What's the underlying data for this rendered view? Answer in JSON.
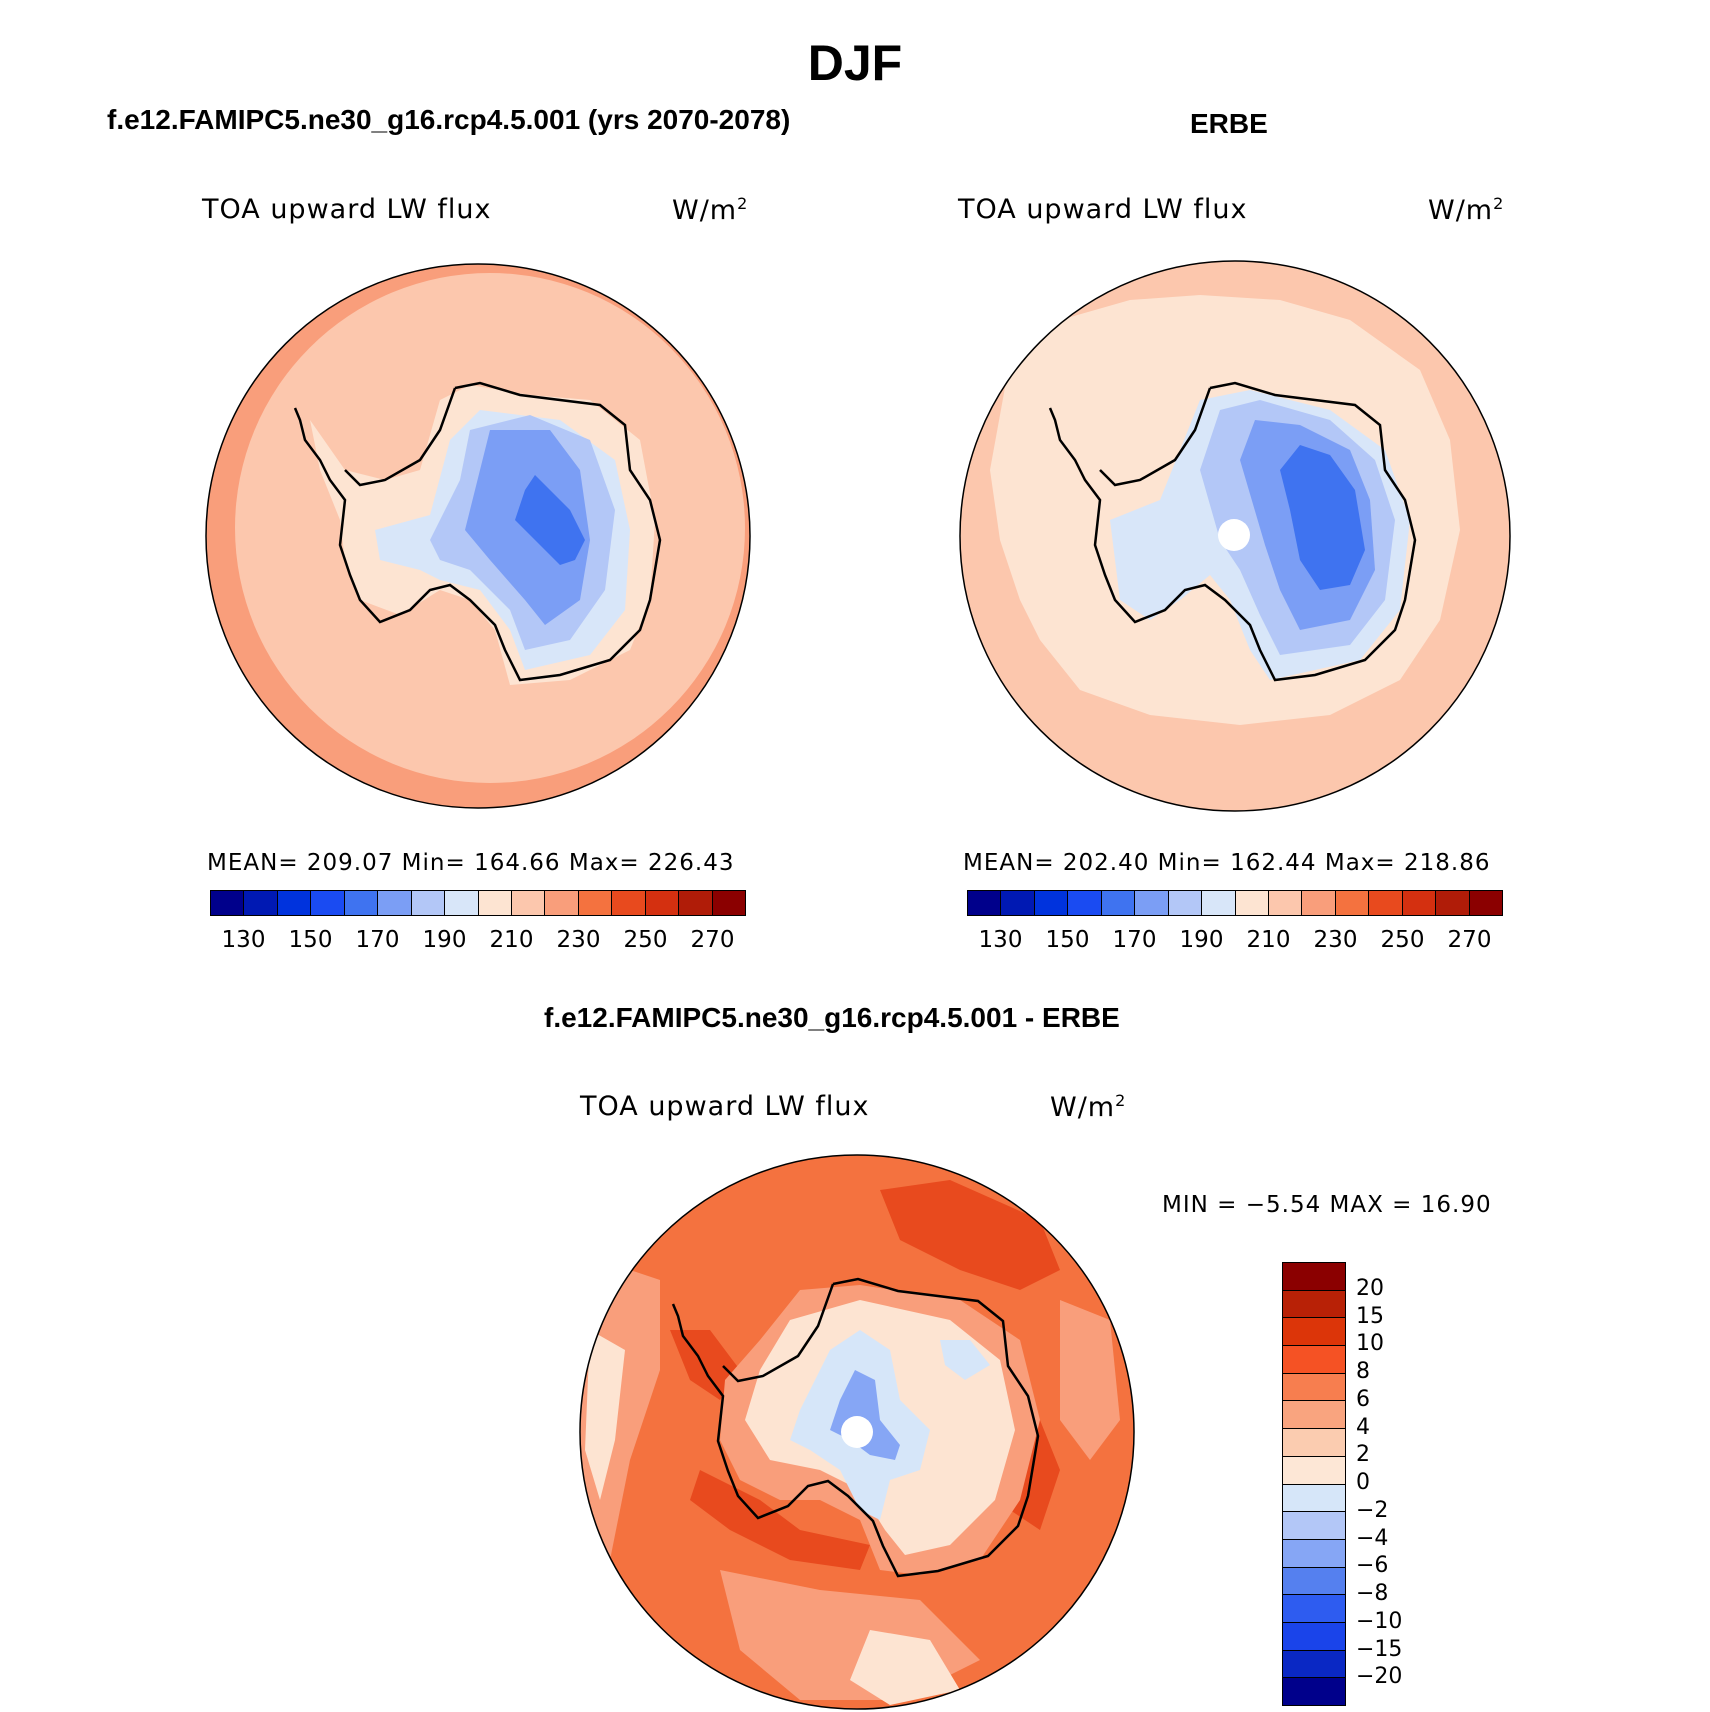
{
  "main_title": "DJF",
  "panels": [
    {
      "title": "f.e12.FAMIPC5.ne30_g16.rcp4.5.001 (yrs 2070-2078)",
      "variable": "TOA upward LW flux",
      "units": "W/m",
      "units_sup": "2",
      "stats": "MEAN= 209.07   Min= 164.66   Max= 226.43"
    },
    {
      "title": "ERBE",
      "variable": "TOA upward LW flux",
      "units": "W/m",
      "units_sup": "2",
      "stats": "MEAN= 202.40   Min= 162.44   Max= 218.86"
    },
    {
      "title": "f.e12.FAMIPC5.ne30_g16.rcp4.5.001 - ERBE",
      "variable": "TOA upward LW flux",
      "units": "W/m",
      "units_sup": "2",
      "stats": "MIN =   −5.54 MAX =   16.90"
    }
  ],
  "colorbar_abs": {
    "colors": [
      "#00008b",
      "#0019b3",
      "#0033dd",
      "#1a4bf2",
      "#3f73f0",
      "#7b9ef5",
      "#b3c7f7",
      "#d8e6f9",
      "#fde4d2",
      "#fcc7ad",
      "#f99e7b",
      "#f4723f",
      "#e84a1e",
      "#d43010",
      "#b01c08",
      "#8b0000"
    ],
    "labels": [
      "130",
      "150",
      "170",
      "190",
      "210",
      "230",
      "250",
      "270"
    ]
  },
  "colorbar_diff": {
    "colors": [
      "#8b0000",
      "#b82106",
      "#dc3509",
      "#f55224",
      "#f77e4f",
      "#f9a47f",
      "#fbccb0",
      "#fde7d6",
      "#d6e6f9",
      "#b3c7f7",
      "#86a6f5",
      "#5580ef",
      "#2e5cf0",
      "#1a44ea",
      "#0a28c4",
      "#00008b"
    ],
    "labels": [
      "20",
      "15",
      "10",
      "8",
      "6",
      "4",
      "2",
      "0",
      "−2",
      "−4",
      "−6",
      "−8",
      "−10",
      "−15",
      "−20"
    ]
  },
  "map_colors": {
    "ocean_model": "#fcc7ad",
    "ocean_model_edge": "#f99e7b",
    "ocean_erbe": "#fde4d2",
    "ocean_erbe_band": "#fcc7ad",
    "ice_1": "#d8e6f9",
    "ice_2": "#b3c7f7",
    "ice_3": "#7b9ef5",
    "ice_4": "#3f73f0",
    "diff_base": "#f4723f",
    "diff_high": "#e84a1e",
    "diff_mid": "#f99e7b",
    "diff_low": "#fde4d2",
    "diff_neg1": "#d6e6f9",
    "diff_neg2": "#86a6f5"
  }
}
